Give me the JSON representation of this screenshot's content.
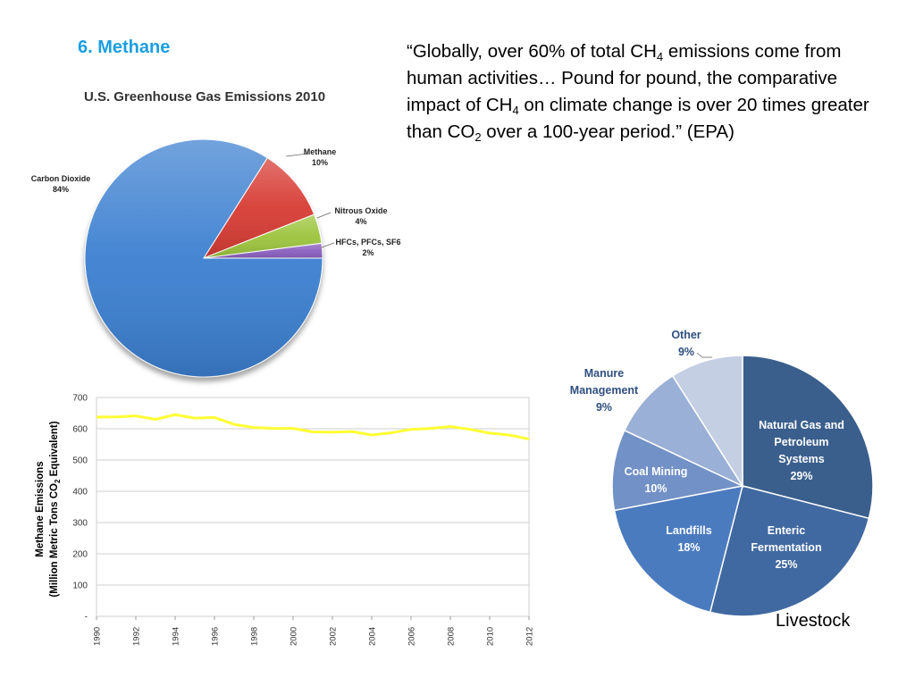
{
  "heading": "6. Methane",
  "quote": {
    "part1": "“Globally, over 60% of total CH",
    "sub1": "4",
    "part2": " emissions come from human activities… Pound for pound, the comparative impact of CH",
    "sub2": "4",
    "part3": " on climate change is over 20 times greater than CO",
    "sub3": "2",
    "part4": " over a 100-year period.” (EPA)"
  },
  "livestock_label": "Livestock",
  "chart_data": [
    {
      "type": "pie",
      "title": "U.S. Greenhouse Gas Emissions 2010",
      "slices": [
        {
          "name": "Carbon Dioxide",
          "value_label": "84%",
          "value": 84,
          "color": "#3b7fd0"
        },
        {
          "name": "Methane",
          "value_label": "10%",
          "value": 10,
          "color": "#d63b33"
        },
        {
          "name": "Nitrous Oxide",
          "value_label": "4%",
          "value": 4,
          "color": "#9cc43c"
        },
        {
          "name": "HFCs, PFCs, SF6",
          "value_label": "2%",
          "value": 2,
          "color": "#8a5fbf"
        }
      ]
    },
    {
      "type": "line",
      "title": "",
      "ylabel_line1": "Methane Emissions",
      "ylabel_line2a": "(Million Metric Tons CO",
      "ylabel_sub": "2",
      "ylabel_line2b": " Equivalent)",
      "ylim": [
        0,
        700
      ],
      "yticks": [
        {
          "value": 700,
          "label": "700"
        },
        {
          "value": 600,
          "label": "600"
        },
        {
          "value": 500,
          "label": "500"
        },
        {
          "value": 400,
          "label": "400"
        },
        {
          "value": 300,
          "label": "300"
        },
        {
          "value": 200,
          "label": "200"
        },
        {
          "value": 100,
          "label": "100"
        },
        {
          "value": 0,
          "label": "-"
        }
      ],
      "xlim": [
        1990,
        2012
      ],
      "xticks": [
        "1990",
        "1992",
        "1994",
        "1996",
        "1998",
        "2000",
        "2002",
        "2004",
        "2006",
        "2008",
        "2010",
        "2012"
      ],
      "grid": true,
      "series": [
        {
          "color": "#ffff33",
          "x": [
            1990,
            1991,
            1992,
            1993,
            1994,
            1995,
            1996,
            1997,
            1998,
            1999,
            2000,
            2001,
            2002,
            2003,
            2004,
            2005,
            2006,
            2007,
            2008,
            2009,
            2010,
            2011,
            2012
          ],
          "y": [
            637,
            638,
            641,
            630,
            645,
            634,
            636,
            614,
            604,
            601,
            601,
            590,
            589,
            591,
            580,
            587,
            598,
            601,
            607,
            598,
            586,
            580,
            567
          ]
        }
      ]
    },
    {
      "type": "pie",
      "title": "",
      "slices": [
        {
          "name": "Natural Gas and Petroleum Systems",
          "lines": [
            "Natural Gas and",
            "Petroleum",
            "Systems"
          ],
          "value_label": "29%",
          "value": 29,
          "color": "#3a5f8d"
        },
        {
          "name": "Enteric Fermentation",
          "lines": [
            "Enteric",
            "Fermentation"
          ],
          "value_label": "25%",
          "value": 25,
          "color": "#4169a1"
        },
        {
          "name": "Landfills",
          "lines": [
            "Landfills"
          ],
          "value_label": "18%",
          "value": 18,
          "color": "#4b7bbf"
        },
        {
          "name": "Coal Mining",
          "lines": [
            "Coal Mining"
          ],
          "value_label": "10%",
          "value": 10,
          "color": "#7291c6"
        },
        {
          "name": "Manure Management",
          "lines": [
            "Manure",
            "Management"
          ],
          "value_label": "9%",
          "value": 9,
          "color": "#9bb0d6"
        },
        {
          "name": "Other",
          "lines": [
            "Other"
          ],
          "value_label": "9%",
          "value": 9,
          "color": "#c5cfe4"
        }
      ]
    }
  ]
}
